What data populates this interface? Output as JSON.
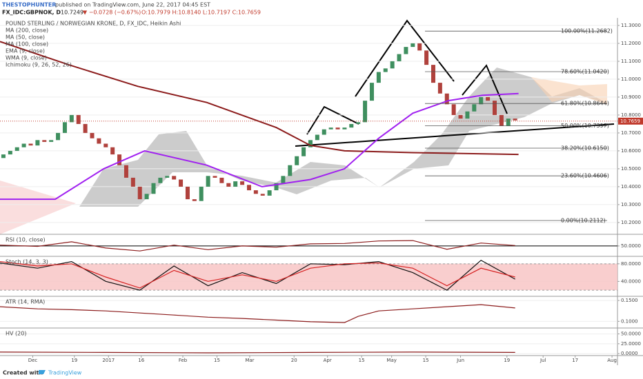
{
  "header": {
    "author": "THESTOPHUNTER",
    "published": "published on TradingView.com, June 22, 2017 04:45 EST",
    "symbol": "FX_IDC:GBPNOK, D",
    "last": "10.7249",
    "change": "▼ −0.0728 (−0.67%)",
    "ohlc": "O:10.7979 H:10.8140 L:10.7197 C:10.7659"
  },
  "footer": {
    "created": "Created with",
    "brand": "TradingView"
  },
  "chart_data": [
    {
      "type": "candlestick",
      "title": "POUND STERLING / NORWEGIAN KRONE, D, FX_IDC, Heikin Ashi",
      "up_color": "#3f8f5f",
      "down_color": "#b0413c",
      "open": [
        10.56,
        10.58,
        10.6,
        10.62,
        10.64,
        10.63,
        10.66,
        10.65,
        10.66,
        10.7,
        10.76,
        10.8,
        10.75,
        10.7,
        10.67,
        10.64,
        10.62,
        10.58,
        10.52,
        10.45,
        10.4,
        10.33,
        10.36,
        10.42,
        10.45,
        10.46,
        10.44,
        10.4,
        10.33,
        10.32,
        10.4,
        10.46,
        10.45,
        10.42,
        10.4,
        10.43,
        10.41,
        10.38,
        10.36,
        10.35,
        10.38,
        10.42,
        10.46,
        10.52,
        10.57,
        10.62,
        10.66,
        10.69,
        10.72,
        10.73,
        10.72,
        10.73,
        10.75,
        10.76,
        10.88,
        10.98,
        11.04,
        11.06,
        11.1,
        11.14,
        11.18,
        11.2,
        11.16,
        11.08,
        10.98,
        10.92,
        10.86,
        10.8,
        10.78,
        10.82,
        10.86,
        10.9,
        10.88,
        10.8,
        10.74,
        10.78
      ],
      "close": [
        10.58,
        10.6,
        10.62,
        10.64,
        10.63,
        10.66,
        10.65,
        10.66,
        10.7,
        10.76,
        10.8,
        10.75,
        10.7,
        10.67,
        10.64,
        10.62,
        10.58,
        10.52,
        10.45,
        10.4,
        10.33,
        10.36,
        10.42,
        10.45,
        10.46,
        10.44,
        10.4,
        10.33,
        10.32,
        10.4,
        10.46,
        10.45,
        10.42,
        10.4,
        10.43,
        10.41,
        10.38,
        10.36,
        10.35,
        10.38,
        10.42,
        10.46,
        10.52,
        10.57,
        10.62,
        10.66,
        10.69,
        10.72,
        10.73,
        10.72,
        10.73,
        10.75,
        10.76,
        10.88,
        10.98,
        11.04,
        11.06,
        11.1,
        11.14,
        11.18,
        11.2,
        11.16,
        11.08,
        10.98,
        10.92,
        10.86,
        10.8,
        10.78,
        10.82,
        10.86,
        10.9,
        10.88,
        10.8,
        10.74,
        10.78,
        10.77
      ],
      "series": [
        {
          "name": "MA (200, close)",
          "color": "#8b1a1a",
          "x": [
            -0.5,
            9.6,
            19.7,
            29.8,
            40,
            45,
            50,
            60,
            75.5
          ],
          "values": [
            11.21,
            11.08,
            10.96,
            10.87,
            10.73,
            10.63,
            10.6,
            10.59,
            10.58
          ]
        },
        {
          "name": "MA (50, close)",
          "color": "#a020f0",
          "x": [
            -0.5,
            7.6,
            14.7,
            20.7,
            29.8,
            37.9,
            45,
            50,
            55,
            60,
            65.2,
            70.2,
            75.5
          ],
          "values": [
            10.33,
            10.33,
            10.5,
            10.6,
            10.52,
            10.4,
            10.44,
            10.5,
            10.67,
            10.81,
            10.88,
            10.91,
            10.92
          ]
        }
      ],
      "indicators": [
        "MA (100, close)",
        "EMA (9, close)",
        "WMA (9, close)",
        "Ichimoku (9, 26, 52, 26)"
      ],
      "fib_levels": [
        {
          "value": 11.2682,
          "label": "100.00%(11.2682)"
        },
        {
          "value": 11.042,
          "label": "78.60%(11.0420)"
        },
        {
          "value": 10.8644,
          "label": "61.80%(10.8644)"
        },
        {
          "value": 10.7397,
          "label": "50.00%(10.7397)"
        },
        {
          "value": 10.615,
          "label": "38.20%(10.6150)"
        },
        {
          "value": 10.4606,
          "label": "23.60%(10.4606)"
        },
        {
          "value": 10.2112,
          "label": "0.00%(10.2112)"
        }
      ],
      "last_price": {
        "value": 10.7659,
        "label": "10.7659"
      },
      "xlim": [
        -0.5,
        90
      ],
      "xticks": [
        {
          "value": 4.3,
          "label": "Dec"
        },
        {
          "value": 10.4,
          "label": "19"
        },
        {
          "value": 15.4,
          "label": "2017"
        },
        {
          "value": 20.2,
          "label": "16"
        },
        {
          "value": 26.3,
          "label": "Feb"
        },
        {
          "value": 31.3,
          "label": "15"
        },
        {
          "value": 36.1,
          "label": "Mar"
        },
        {
          "value": 42.6,
          "label": "20"
        },
        {
          "value": 47.5,
          "label": "Apr"
        },
        {
          "value": 52.5,
          "label": "15"
        },
        {
          "value": 56.9,
          "label": "May"
        },
        {
          "value": 61.9,
          "label": "15"
        },
        {
          "value": 67,
          "label": "Jun"
        },
        {
          "value": 73.8,
          "label": "19"
        },
        {
          "value": 79.1,
          "label": "Jul"
        },
        {
          "value": 83.8,
          "label": "17"
        },
        {
          "value": 89.2,
          "label": "Aug"
        }
      ],
      "ylim": [
        10.142,
        11.342
      ],
      "yticks": [
        {
          "value": 10.2,
          "label": "10.2000"
        },
        {
          "value": 10.3,
          "label": "10.3000"
        },
        {
          "value": 10.4,
          "label": "10.4000"
        },
        {
          "value": 10.5,
          "label": "10.5000"
        },
        {
          "value": 10.6,
          "label": "10.6000"
        },
        {
          "value": 10.7,
          "label": "10.7000"
        },
        {
          "value": 10.8,
          "label": "10.8000"
        },
        {
          "value": 10.9,
          "label": "10.9000"
        },
        {
          "value": 11.0,
          "label": "11.0000"
        },
        {
          "value": 11.1,
          "label": "11.1000"
        },
        {
          "value": 11.2,
          "label": "11.2000"
        },
        {
          "value": 11.3,
          "label": "11.3000"
        }
      ],
      "grid": true
    },
    {
      "type": "line",
      "title": "RSI (10, close)",
      "x": [
        -0.5,
        5,
        10,
        15,
        20,
        25,
        30,
        35,
        40,
        45,
        50,
        55,
        60,
        65,
        70,
        75
      ],
      "series": [
        {
          "color": "#8b1a1a",
          "values": [
            52,
            49,
            60,
            45,
            38,
            52,
            41,
            50,
            47,
            55,
            56,
            62,
            63,
            42,
            57,
            51
          ]
        }
      ],
      "ylim": [
        25,
        78
      ],
      "yticks": [
        {
          "value": 50,
          "label": "50.0000"
        }
      ],
      "hline": 50
    },
    {
      "type": "line",
      "title": "Stoch (14, 3, 3)",
      "x": [
        -0.5,
        5,
        10,
        15,
        20,
        25,
        30,
        35,
        40,
        45,
        50,
        55,
        60,
        65,
        70,
        75
      ],
      "series": [
        {
          "color": "#111111",
          "values": [
            82,
            70,
            85,
            40,
            20,
            75,
            30,
            60,
            35,
            80,
            78,
            85,
            60,
            20,
            88,
            45
          ]
        },
        {
          "color": "#d62020",
          "values": [
            85,
            75,
            80,
            50,
            25,
            65,
            40,
            55,
            40,
            70,
            80,
            82,
            70,
            30,
            70,
            50
          ]
        }
      ],
      "band": [
        20,
        80
      ],
      "band_color": "#f7c2c2",
      "ylim": [
        6,
        97
      ],
      "yticks": [
        {
          "value": 40,
          "label": "40.0000"
        },
        {
          "value": 80,
          "label": "80.0000"
        }
      ]
    },
    {
      "type": "line",
      "title": "ATR (14, RMA)",
      "x": [
        -0.5,
        5,
        10,
        15,
        20,
        25,
        30,
        35,
        40,
        45,
        50,
        52,
        55,
        60,
        65,
        70,
        75
      ],
      "series": [
        {
          "color": "#8b1a1a",
          "values": [
            0.135,
            0.13,
            0.128,
            0.125,
            0.12,
            0.115,
            0.11,
            0.107,
            0.103,
            0.099,
            0.097,
            0.112,
            0.125,
            0.13,
            0.135,
            0.14,
            0.132
          ]
        }
      ],
      "ylim": [
        0.084,
        0.16
      ],
      "yticks": [
        {
          "value": 0.1,
          "label": "0.1000"
        },
        {
          "value": 0.15,
          "label": "0.1500"
        }
      ]
    },
    {
      "type": "line",
      "title": "HV (20)",
      "x": [
        -0.5,
        15,
        30,
        45,
        60,
        75
      ],
      "series": [
        {
          "color": "#8b1a1a",
          "values": [
            4,
            3,
            2,
            3,
            4,
            3
          ]
        }
      ],
      "ylim": [
        -5,
        65
      ],
      "yticks": [
        {
          "value": 0,
          "label": "0.0000"
        },
        {
          "value": 25,
          "label": "25.0000"
        },
        {
          "value": 50,
          "label": "50.0000"
        }
      ]
    }
  ]
}
